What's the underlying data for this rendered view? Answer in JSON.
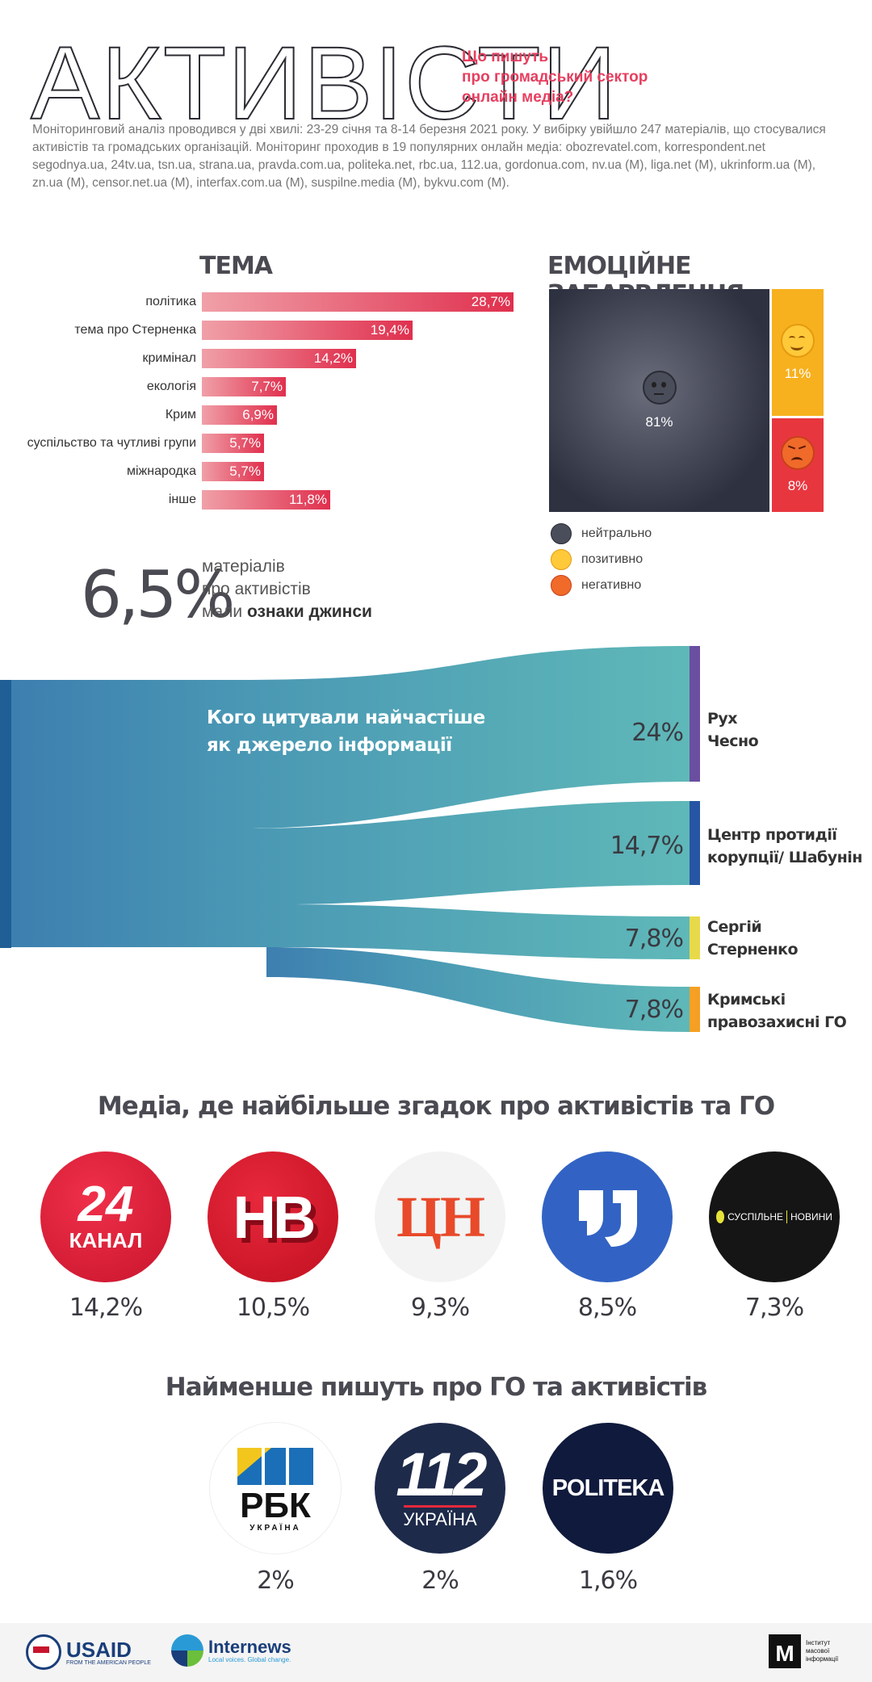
{
  "header": {
    "title": "АКТИВІСТИ",
    "subtitle": [
      "Що пишуть",
      "про громадський сектор",
      "онлайн медіа?"
    ],
    "intro": "Моніторинговий аналіз проводився у дві хвилі: 23-29 січня та 8-14 березня 2021 року. У вибірку увійшло 247 матеріалів, що стосувалися активістів та громадських організацій.  Моніторинг проходив в 19 популярних онлайн медіа: obozrevatel.com, korrespondent.net segodnya.ua, 24tv.ua, tsn.ua, strana.ua, pravda.com.ua, politeka.net, rbc.ua, 112.ua, gordonua.com, nv.ua (M), liga.net (M), ukrinform.ua (M), zn.ua (M), censor.net.ua (M), interfax.com.ua (M), suspilne.media (M), bykvu.com (M)."
  },
  "topics": {
    "title": "ТЕМА",
    "items": [
      {
        "label": "політика",
        "value": 28.7,
        "display": "28,7%"
      },
      {
        "label": "тема про Стерненка",
        "value": 19.4,
        "display": "19,4%"
      },
      {
        "label": "кримінал",
        "value": 14.2,
        "display": "14,2%"
      },
      {
        "label": "екологія",
        "value": 7.7,
        "display": "7,7%"
      },
      {
        "label": "Крим",
        "value": 6.9,
        "display": "6,9%"
      },
      {
        "label": "суспільство та чутливі групи",
        "value": 5.7,
        "display": "5,7%"
      },
      {
        "label": "міжнародка",
        "value": 5.7,
        "display": "5,7%"
      },
      {
        "label": "інше",
        "value": 11.8,
        "display": "11,8%"
      }
    ]
  },
  "emotions": {
    "title": "ЕМОЦІЙНЕ ЗАБАРВЛЕННЯ",
    "items": [
      {
        "key": "neutral",
        "value": 81,
        "display": "81%",
        "legend": "нейтрально",
        "icon": "neutral-face-icon",
        "color": "#3b3e4d"
      },
      {
        "key": "positive",
        "value": 11,
        "display": "11%",
        "legend": "позитивно",
        "icon": "smiling-face-icon",
        "color": "#f7a814"
      },
      {
        "key": "negative",
        "value": 8,
        "display": "8%",
        "legend": "негативно",
        "icon": "angry-face-icon",
        "color": "#e83a48"
      }
    ]
  },
  "jeans": {
    "value": "6,5%",
    "line1": "матеріалів",
    "line2": "про активістів",
    "line3_prefix": "мали ",
    "line3_bold": "ознаки джинси"
  },
  "sources": {
    "title_line1": "Кого цитували найчастіше",
    "title_line2": "як джерело інформації",
    "items": [
      {
        "value": 24,
        "display": "24%",
        "label_lines": [
          "Рух",
          "Чесно"
        ],
        "color": "#6a4ea0"
      },
      {
        "value": 14.7,
        "display": "14,7%",
        "label_lines": [
          "Центр протидії",
          "корупції/ Шабунін"
        ],
        "color": "#2656a3"
      },
      {
        "value": 7.8,
        "display": "7,8%",
        "label_lines": [
          "Сергій",
          "Стерненко"
        ],
        "color": "#e8d94a"
      },
      {
        "value": 7.8,
        "display": "7,8%",
        "label_lines": [
          "Кримські",
          "правозахисні ГО"
        ],
        "color": "#f5a024"
      }
    ]
  },
  "media_top": {
    "title": "Медіа, де найбільше згадок про активістів та ГО",
    "items": [
      {
        "logo": "24-kanal-logo",
        "text": "24",
        "sub": "КАНАЛ",
        "display": "14,2%"
      },
      {
        "logo": "nv-logo",
        "text": "НВ",
        "display": "10,5%"
      },
      {
        "logo": "tsn-logo",
        "text": "ЦН",
        "display": "9,3%"
      },
      {
        "logo": "ukrinform-logo",
        "text": "",
        "display": "8,5%"
      },
      {
        "logo": "suspilne-logo",
        "text": "СУСПІЛЬНЕ",
        "sub": "НОВИНИ",
        "display": "7,3%"
      }
    ]
  },
  "media_low": {
    "title": "Найменше пишуть про ГО та активістів",
    "items": [
      {
        "logo": "rbc-logo",
        "text": "РБК",
        "sub": "УКРАЇНА",
        "display": "2%"
      },
      {
        "logo": "112-logo",
        "text": "112",
        "sub": "УКРАЇНА",
        "display": "2%"
      },
      {
        "logo": "politeka-logo",
        "text": "POLITEKA",
        "display": "1,6%"
      }
    ]
  },
  "footer": {
    "usaid": "USAID",
    "usaid_sub": "FROM THE AMERICAN PEOPLE",
    "internews": "Internews",
    "internews_sub": "Local voices. Global change.",
    "imi": [
      "Інститут",
      "масової",
      "інформації"
    ]
  }
}
